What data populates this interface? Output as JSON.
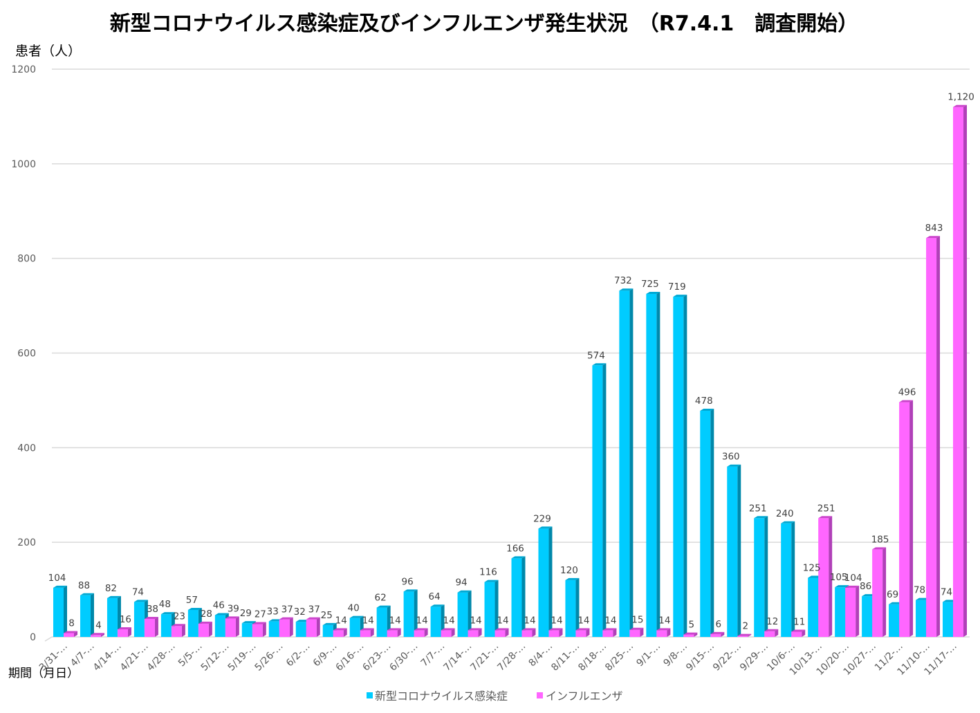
{
  "chart_data": {
    "type": "bar",
    "title": "新型コロナウイルス感染症及びインフルエンザ発生状況　（R7.4.1　調査開始）",
    "ylabel": "患者（人）",
    "xlabel": "期間（月日）",
    "ylim": [
      0,
      1200
    ],
    "yticks": [
      0,
      200,
      400,
      600,
      800,
      1000,
      1200
    ],
    "grid": true,
    "legend_position": "bottom",
    "categories": [
      "3/31-…",
      "4/7-…",
      "4/14-…",
      "4/21-…",
      "4/28-…",
      "5/5-…",
      "5/12-…",
      "5/19-…",
      "5/26-…",
      "6/2-…",
      "6/9-…",
      "6/16-…",
      "6/23-…",
      "6/30-…",
      "7/7-…",
      "7/14-…",
      "7/21-…",
      "7/28-…",
      "8/4-…",
      "8/11-…",
      "8/18-…",
      "8/25-…",
      "9/1-…",
      "9/8-…",
      "9/15-…",
      "9/22-…",
      "9/29-…",
      "10/6-…",
      "10/13-…",
      "10/20-…",
      "10/27-…",
      "11/2-…",
      "11/10-…",
      "11/17-…"
    ],
    "series": [
      {
        "name": "新型コロナウイルス感染症",
        "color": "#00CCFF",
        "values": [
          104,
          88,
          82,
          74,
          48,
          57,
          46,
          29,
          33,
          32,
          25,
          40,
          62,
          96,
          64,
          94,
          116,
          166,
          229,
          120,
          574,
          732,
          725,
          719,
          478,
          360,
          251,
          240,
          125,
          105,
          86,
          69,
          78,
          74
        ]
      },
      {
        "name": "インフルエンザ",
        "color": "#FF66FF",
        "values": [
          8,
          4,
          16,
          38,
          23,
          28,
          39,
          27,
          37,
          37,
          14,
          14,
          14,
          14,
          14,
          14,
          14,
          14,
          14,
          14,
          14,
          15,
          14,
          5,
          6,
          2,
          12,
          11,
          251,
          104,
          185,
          496,
          843,
          1120
        ]
      }
    ]
  }
}
